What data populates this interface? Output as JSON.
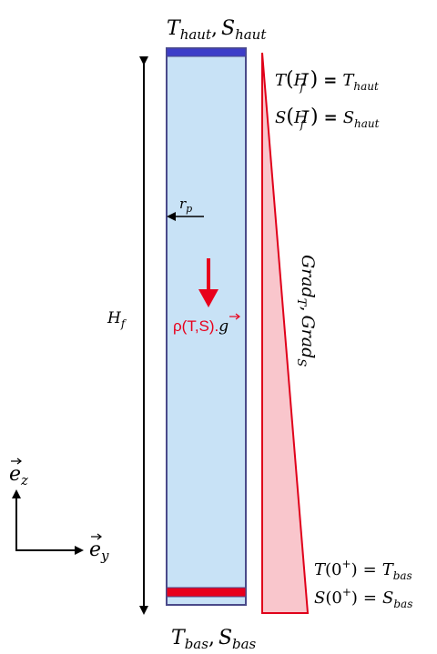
{
  "colors": {
    "column_fill": "#c8e2f6",
    "column_border": "#4a4a8a",
    "top_band": "#3d3dc8",
    "bottom_band": "#e8001c",
    "wedge_fill": "#f9c6cc",
    "wedge_stroke": "#e0001a",
    "gravity": "#e8001c",
    "text": "#000000"
  },
  "labels": {
    "top_T": "T",
    "top_T_sub": "haut",
    "top_S": "S",
    "top_S_sub": "haut",
    "bottom_T": "T",
    "bottom_T_sub": "bas",
    "bottom_S": "S",
    "bottom_S_sub": "bas",
    "height_main": "H",
    "height_sub": "f",
    "radius_main": "r",
    "radius_sub": "p",
    "gravity_label": "ρ(T,S).",
    "gravity_vec": "g",
    "grad_T_main": "Grad",
    "grad_T_sub": "T",
    "grad_S_main": "Grad",
    "grad_S_sub": "S",
    "ez_main": "e",
    "ez_sub": "z",
    "ey_main": "e",
    "ey_sub": "y",
    "eq_top_1": {
      "lhs": "T",
      "arg_main": "H",
      "arg_sub": "f",
      "arg_sup": "−",
      "rhs_main": "T",
      "rhs_sub": "haut"
    },
    "eq_top_2": {
      "lhs": "S",
      "arg_main": "H",
      "arg_sub": "f",
      "arg_sup": "−",
      "rhs_main": "S",
      "rhs_sub": "haut"
    },
    "eq_bot_1": {
      "lhs": "T",
      "arg_main": "0",
      "arg_sup": "+",
      "rhs_main": "T",
      "rhs_sub": "bas"
    },
    "eq_bot_2": {
      "lhs": "S",
      "arg_main": "0",
      "arg_sup": "+",
      "rhs_main": "S",
      "rhs_sub": "bas"
    },
    "equals": "=",
    "comma": ","
  }
}
